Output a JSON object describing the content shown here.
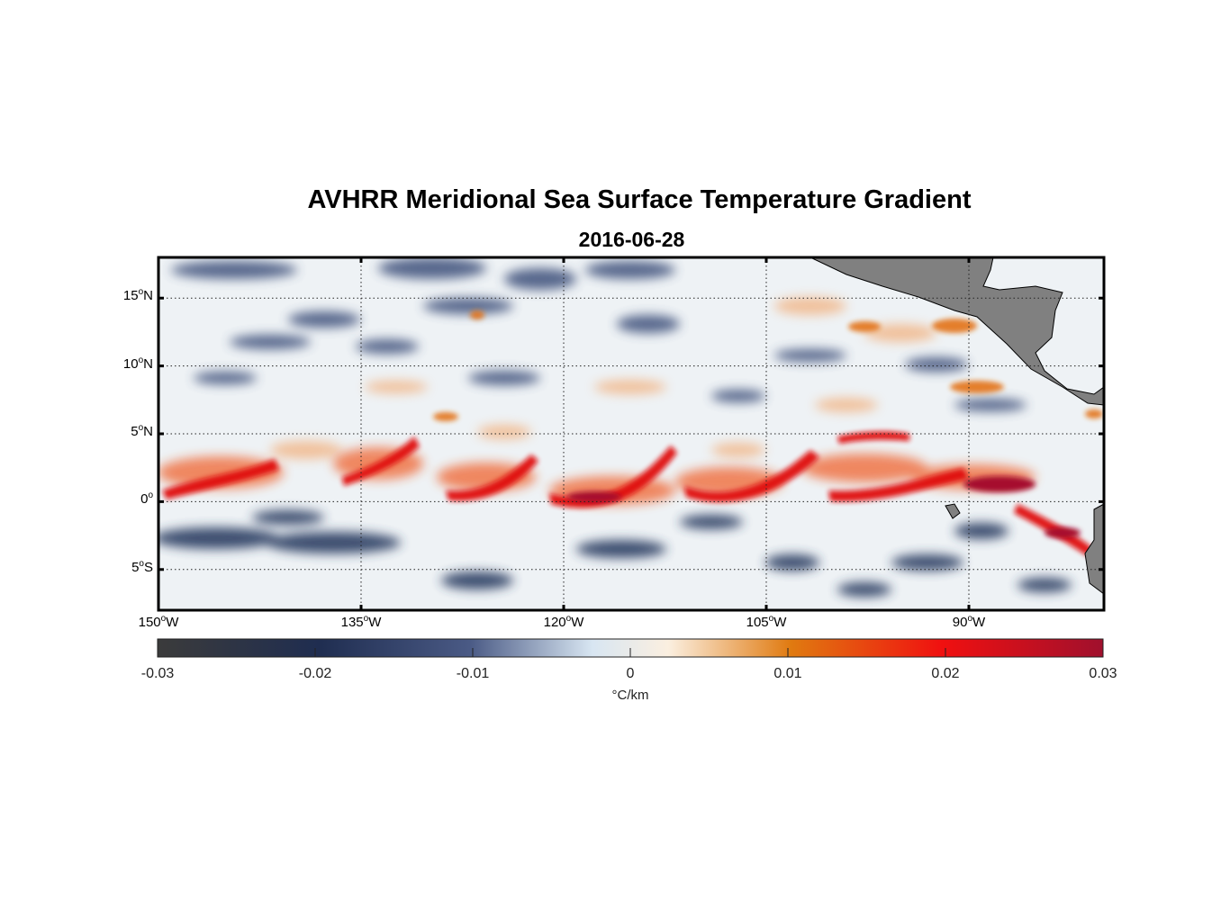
{
  "title": "AVHRR Meridional Sea Surface Temperature Gradient",
  "subtitle": "2016-06-28",
  "map": {
    "extent": {
      "lon_min": -150,
      "lon_max": -80,
      "lat_min": -8,
      "lat_max": 18
    },
    "grid": true,
    "lat_ticks": [
      {
        "value": 15,
        "num": "15",
        "deg": "o",
        "hem": "N"
      },
      {
        "value": 10,
        "num": "10",
        "deg": "o",
        "hem": "N"
      },
      {
        "value": 5,
        "num": "5",
        "deg": "o",
        "hem": "N"
      },
      {
        "value": 0,
        "num": "0",
        "deg": "o",
        "hem": ""
      },
      {
        "value": -5,
        "num": "5",
        "deg": "o",
        "hem": "S"
      }
    ],
    "lon_ticks": [
      {
        "value": -150,
        "num": "150",
        "deg": "o",
        "hem": "W"
      },
      {
        "value": -135,
        "num": "135",
        "deg": "o",
        "hem": "W"
      },
      {
        "value": -120,
        "num": "120",
        "deg": "o",
        "hem": "W"
      },
      {
        "value": -105,
        "num": "105",
        "deg": "o",
        "hem": "W"
      },
      {
        "value": -90,
        "num": "90",
        "deg": "o",
        "hem": "W"
      }
    ],
    "land_color": "#808080"
  },
  "colorbar": {
    "min": -0.03,
    "max": 0.03,
    "ticks": [
      "-0.03",
      "-0.02",
      "-0.01",
      "0",
      "0.01",
      "0.02",
      "0.03"
    ],
    "unit": "°C/km",
    "colors": [
      "#3b3b3b",
      "#1f2d50",
      "#4a5a85",
      "#d8e6f2",
      "#fbefe0",
      "#e07a10",
      "#f01010",
      "#a0102d"
    ]
  }
}
